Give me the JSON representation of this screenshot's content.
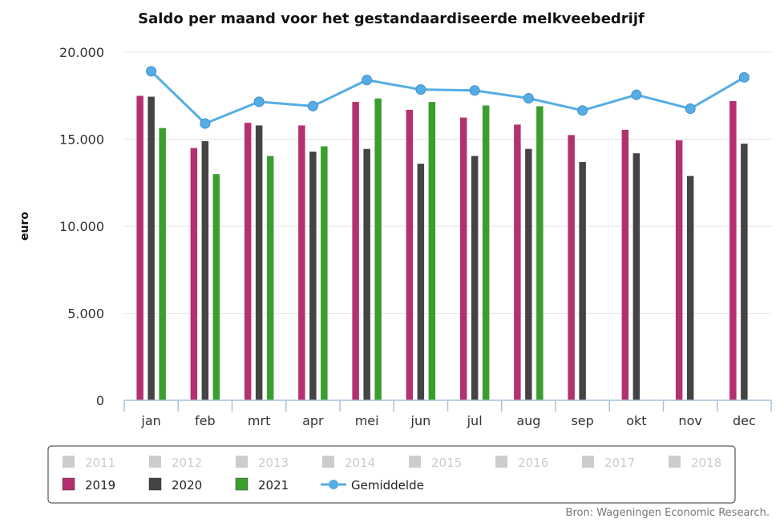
{
  "chart_data": {
    "type": "bar",
    "title": "Saldo per maand voor het gestandaardiseerde melkveebedrijf",
    "ylabel": "euro",
    "xlabel": "",
    "ylim": [
      0,
      20000
    ],
    "yticks": [
      0,
      5000,
      10000,
      15000,
      20000
    ],
    "ytick_labels": [
      "0",
      "5.000",
      "10.000",
      "15.000",
      "20.000"
    ],
    "categories": [
      "jan",
      "feb",
      "mrt",
      "apr",
      "mei",
      "jun",
      "jul",
      "aug",
      "sep",
      "okt",
      "nov",
      "dec"
    ],
    "series": [
      {
        "name": "2019",
        "type": "bar",
        "color": "#b5306e",
        "values": [
          17500,
          14500,
          15950,
          15800,
          17150,
          16700,
          16250,
          15850,
          15250,
          15550,
          14950,
          17200
        ]
      },
      {
        "name": "2020",
        "type": "bar",
        "color": "#444444",
        "values": [
          17450,
          14900,
          15800,
          14300,
          14450,
          13600,
          14050,
          14450,
          13700,
          14200,
          12900,
          14750
        ]
      },
      {
        "name": "2021",
        "type": "bar",
        "color": "#3a9e2f",
        "values": [
          15650,
          13000,
          14050,
          14600,
          17350,
          17150,
          16950,
          16900,
          null,
          null,
          null,
          null
        ]
      },
      {
        "name": "Gemiddelde",
        "type": "line",
        "color": "#56ade3",
        "values": [
          18900,
          15900,
          17150,
          16900,
          18400,
          17850,
          17800,
          17350,
          16650,
          17550,
          16750,
          18550
        ]
      }
    ],
    "legend": {
      "placement": "bottom",
      "inactive_color": "#cccccc",
      "inactive_items": [
        "2011",
        "2012",
        "2013",
        "2014",
        "2015",
        "2016",
        "2017",
        "2018"
      ],
      "active_items": [
        "2019",
        "2020",
        "2021",
        "Gemiddelde"
      ]
    },
    "grid": true,
    "source": "Bron: Wageningen Economic Research."
  }
}
